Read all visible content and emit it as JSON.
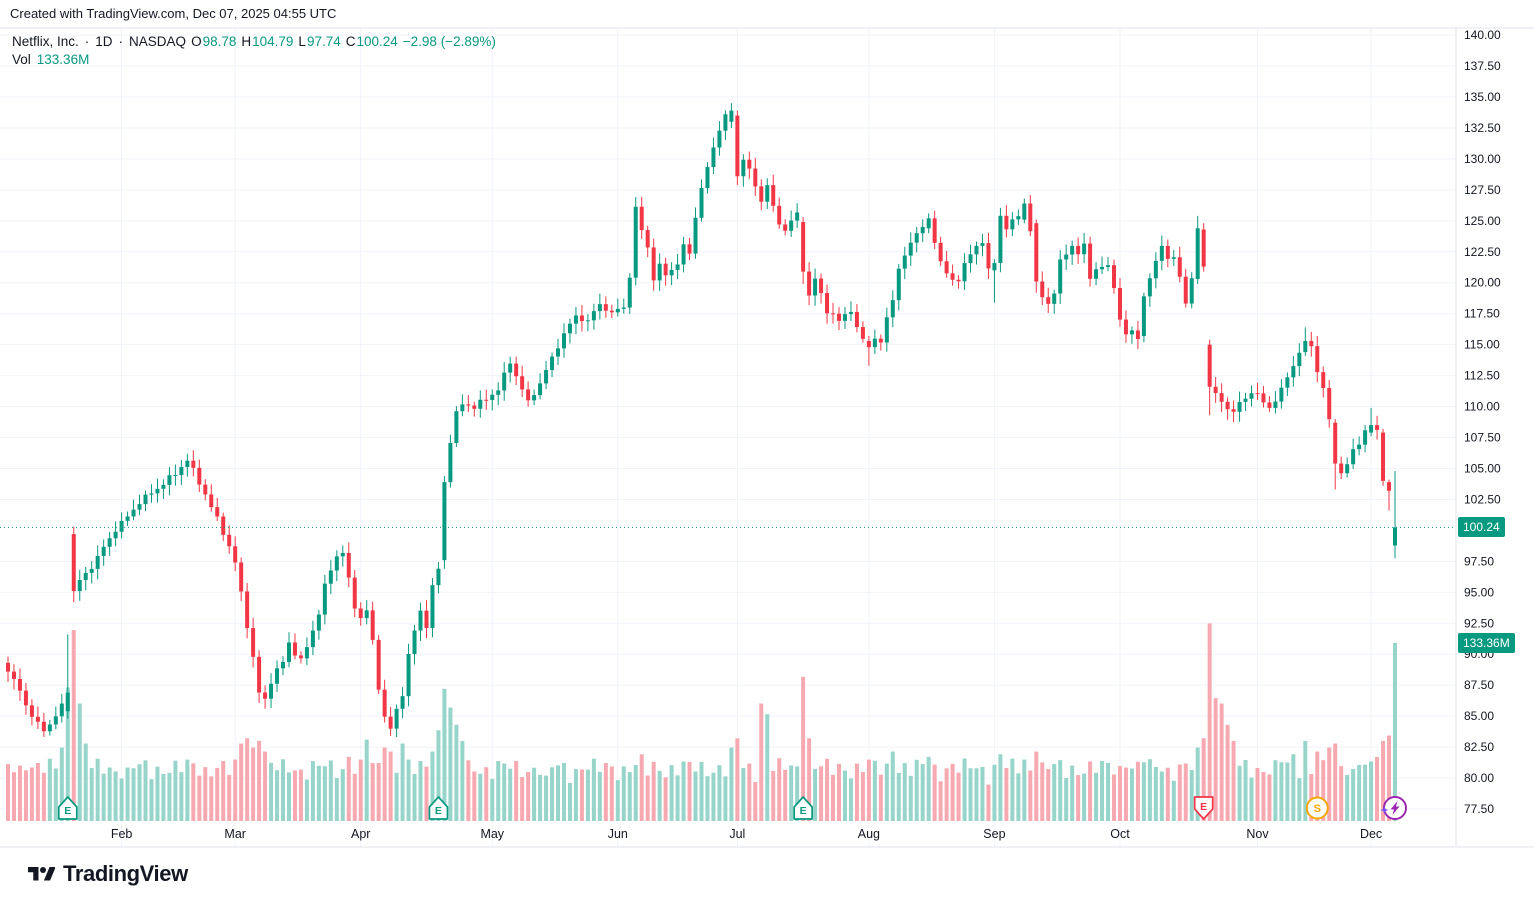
{
  "header": {
    "attribution": "Created with TradingView.com, Dec 07, 2025 04:55 UTC",
    "symbol": {
      "title": "Netflix, Inc.",
      "sep": "·",
      "interval": "1D",
      "exchange": "NASDAQ"
    },
    "ohlc": [
      {
        "label": "O",
        "value": "98.78"
      },
      {
        "label": "H",
        "value": "104.79"
      },
      {
        "label": "L",
        "value": "97.74"
      },
      {
        "label": "C",
        "value": "100.24"
      }
    ],
    "change": "−2.98 (−2.89%)",
    "vol_label": "Vol",
    "vol_value": "133.36M"
  },
  "badges": {
    "price": "100.24",
    "volume": "133.36M"
  },
  "axes": {
    "price_ticks": [
      "140.00",
      "137.50",
      "135.00",
      "132.50",
      "130.00",
      "127.50",
      "125.00",
      "122.50",
      "120.00",
      "117.50",
      "115.00",
      "112.50",
      "110.00",
      "107.50",
      "105.00",
      "102.50",
      "97.50",
      "95.00",
      "92.50",
      "90.00",
      "87.50",
      "85.00",
      "82.50",
      "80.00",
      "77.50"
    ],
    "months": [
      "Feb",
      "Mar",
      "Apr",
      "May",
      "Jun",
      "Jul",
      "Aug",
      "Sep",
      "Oct",
      "Nov",
      "Dec"
    ]
  },
  "markers": [
    {
      "type": "earnings-up",
      "label": "E",
      "index": 10
    },
    {
      "type": "earnings-up",
      "label": "E",
      "index": 72
    },
    {
      "type": "earnings-up",
      "label": "E",
      "index": 133
    },
    {
      "type": "earnings-down",
      "label": "E",
      "index": 200
    },
    {
      "type": "split",
      "label": "S",
      "index": 219
    },
    {
      "type": "flash",
      "label": "",
      "index": 232
    }
  ],
  "footer": {
    "brand": "TradingView"
  },
  "colors": {
    "up": "#089981",
    "down": "#f23645",
    "vol_up": "#97d5ca",
    "vol_down": "#f7a9b1",
    "text": "#131722",
    "grid": "#f0f3fa",
    "frame": "#e0e3eb",
    "accent": "#089981",
    "badge_text": "#ffffff",
    "split_orange": "#f7a600",
    "flash_purple": "#9c27b0",
    "sparkle": "#7c4dff"
  },
  "chart_data": {
    "type": "candlestick",
    "title": "Netflix, Inc.",
    "interval": "1D",
    "exchange": "NASDAQ",
    "legend_position": "top-left",
    "grid": true,
    "price_axis": {
      "min": 77.5,
      "max": 140,
      "step": 2.5,
      "side": "right"
    },
    "last_candle": {
      "o": 98.78,
      "h": 104.79,
      "l": 97.74,
      "c": 100.24
    },
    "last_change": "−2.98 (−2.89%)",
    "last_volume_millions": 133.36,
    "n": 233,
    "first_open": 89.3,
    "month_start_indices": [
      19,
      38,
      59,
      81,
      102,
      122,
      144,
      165,
      186,
      209,
      228
    ],
    "close_keyframes": [
      [
        0,
        88.6
      ],
      [
        2,
        87.1
      ],
      [
        4,
        84.9
      ],
      [
        6,
        83.9
      ],
      [
        8,
        84.9
      ],
      [
        9,
        85.9
      ],
      [
        10,
        86.9
      ],
      [
        11,
        95.1
      ],
      [
        12,
        95.9
      ],
      [
        14,
        97.1
      ],
      [
        16,
        98.6
      ],
      [
        18,
        100.1
      ],
      [
        20,
        101.1
      ],
      [
        22,
        102.3
      ],
      [
        25,
        103.4
      ],
      [
        28,
        104.6
      ],
      [
        30,
        105.7
      ],
      [
        32,
        103.9
      ],
      [
        34,
        101.9
      ],
      [
        36,
        99.9
      ],
      [
        38,
        97.4
      ],
      [
        39,
        94.9
      ],
      [
        40,
        92.4
      ],
      [
        42,
        86.9
      ],
      [
        43,
        86.3
      ],
      [
        44,
        87.9
      ],
      [
        46,
        89.4
      ],
      [
        47,
        90.9
      ],
      [
        49,
        89.4
      ],
      [
        51,
        91.9
      ],
      [
        52,
        93.4
      ],
      [
        53,
        95.4
      ],
      [
        54,
        96.9
      ],
      [
        55,
        97.9
      ],
      [
        56,
        98.3
      ],
      [
        57,
        95.9
      ],
      [
        58,
        93.9
      ],
      [
        59,
        92.9
      ],
      [
        60,
        93.6
      ],
      [
        61,
        90.9
      ],
      [
        62,
        87.4
      ],
      [
        63,
        84.9
      ],
      [
        64,
        84.0
      ],
      [
        65,
        85.4
      ],
      [
        66,
        86.9
      ],
      [
        67,
        89.9
      ],
      [
        68,
        91.9
      ],
      [
        69,
        93.4
      ],
      [
        70,
        92.4
      ],
      [
        71,
        95.4
      ],
      [
        72,
        96.9
      ],
      [
        73,
        103.9
      ],
      [
        74,
        107.3
      ],
      [
        75,
        109.4
      ],
      [
        76,
        110.2
      ],
      [
        78,
        110.0
      ],
      [
        80,
        110.6
      ],
      [
        82,
        111.4
      ],
      [
        84,
        113.6
      ],
      [
        86,
        111.4
      ],
      [
        87,
        110.3
      ],
      [
        89,
        111.9
      ],
      [
        91,
        113.9
      ],
      [
        93,
        115.9
      ],
      [
        95,
        117.3
      ],
      [
        97,
        116.9
      ],
      [
        99,
        118.3
      ],
      [
        101,
        117.5
      ],
      [
        103,
        118.1
      ],
      [
        104,
        120.5
      ],
      [
        105,
        126.0
      ],
      [
        106,
        124.2
      ],
      [
        107,
        123.0
      ],
      [
        108,
        120.2
      ],
      [
        109,
        121.4
      ],
      [
        110,
        120.6
      ],
      [
        111,
        121.2
      ],
      [
        112,
        121.4
      ],
      [
        113,
        123.0
      ],
      [
        114,
        122.4
      ],
      [
        115,
        125.4
      ],
      [
        116,
        127.5
      ],
      [
        117,
        129.3
      ],
      [
        118,
        131.0
      ],
      [
        119,
        132.4
      ],
      [
        120,
        133.4
      ],
      [
        121,
        133.9
      ],
      [
        122,
        128.6
      ],
      [
        123,
        130.0
      ],
      [
        124,
        129.0
      ],
      [
        125,
        127.9
      ],
      [
        126,
        126.6
      ],
      [
        127,
        127.9
      ],
      [
        128,
        126.0
      ],
      [
        129,
        124.9
      ],
      [
        130,
        124.2
      ],
      [
        131,
        125.0
      ],
      [
        132,
        125.5
      ],
      [
        133,
        120.9
      ],
      [
        134,
        118.9
      ],
      [
        135,
        120.3
      ],
      [
        137,
        117.8
      ],
      [
        139,
        116.9
      ],
      [
        141,
        117.9
      ],
      [
        142,
        116.2
      ],
      [
        144,
        114.8
      ],
      [
        145,
        115.7
      ],
      [
        146,
        114.9
      ],
      [
        147,
        117.3
      ],
      [
        148,
        118.6
      ],
      [
        149,
        121.3
      ],
      [
        150,
        121.9
      ],
      [
        151,
        123.4
      ],
      [
        152,
        124.0
      ],
      [
        153,
        124.6
      ],
      [
        154,
        125.2
      ],
      [
        156,
        121.7
      ],
      [
        157,
        120.8
      ],
      [
        158,
        120.0
      ],
      [
        159,
        120.4
      ],
      [
        160,
        121.5
      ],
      [
        161,
        122.3
      ],
      [
        162,
        122.8
      ],
      [
        163,
        123.5
      ],
      [
        164,
        121.0
      ],
      [
        165,
        121.6
      ],
      [
        166,
        125.3
      ],
      [
        167,
        124.6
      ],
      [
        168,
        124.9
      ],
      [
        169,
        125.4
      ],
      [
        170,
        126.4
      ],
      [
        171,
        124.4
      ],
      [
        172,
        120.1
      ],
      [
        173,
        118.9
      ],
      [
        174,
        118.3
      ],
      [
        175,
        119.3
      ],
      [
        176,
        121.6
      ],
      [
        177,
        122.4
      ],
      [
        178,
        123.0
      ],
      [
        179,
        122.4
      ],
      [
        180,
        122.9
      ],
      [
        181,
        120.5
      ],
      [
        182,
        121.1
      ],
      [
        183,
        121.3
      ],
      [
        184,
        121.2
      ],
      [
        185,
        119.8
      ],
      [
        186,
        117.0
      ],
      [
        187,
        115.8
      ],
      [
        188,
        116.0
      ],
      [
        189,
        115.7
      ],
      [
        190,
        118.9
      ],
      [
        192,
        121.7
      ],
      [
        193,
        123.2
      ],
      [
        194,
        121.8
      ],
      [
        195,
        122.0
      ],
      [
        196,
        120.5
      ],
      [
        197,
        118.5
      ],
      [
        198,
        120.2
      ],
      [
        199,
        124.4
      ],
      [
        200,
        121.3
      ],
      [
        201,
        111.6
      ],
      [
        202,
        110.9
      ],
      [
        203,
        110.4
      ],
      [
        204,
        109.9
      ],
      [
        205,
        109.6
      ],
      [
        206,
        110.2
      ],
      [
        207,
        110.7
      ],
      [
        208,
        111.2
      ],
      [
        209,
        111.0
      ],
      [
        210,
        110.2
      ],
      [
        211,
        110.0
      ],
      [
        212,
        110.5
      ],
      [
        213,
        111.4
      ],
      [
        214,
        112.3
      ],
      [
        215,
        113.4
      ],
      [
        216,
        114.4
      ],
      [
        217,
        115.3
      ],
      [
        218,
        114.9
      ],
      [
        219,
        112.9
      ],
      [
        220,
        111.5
      ],
      [
        221,
        108.8
      ],
      [
        222,
        105.4
      ],
      [
        223,
        104.7
      ],
      [
        224,
        105.3
      ],
      [
        225,
        106.4
      ],
      [
        226,
        107.1
      ],
      [
        227,
        108.1
      ],
      [
        228,
        108.5
      ],
      [
        229,
        108.0
      ],
      [
        230,
        104.0
      ],
      [
        231,
        103.2
      ],
      [
        232,
        100.24
      ]
    ],
    "candle_overrides": {
      "10": [
        85.4,
        91.6,
        84.8,
        86.9
      ],
      "11": [
        99.7,
        100.3,
        94.2,
        95.1
      ],
      "73": [
        97.6,
        104.4,
        96.9,
        103.9
      ],
      "121": [
        133.0,
        134.5,
        132.5,
        133.9
      ],
      "122": [
        133.5,
        133.9,
        127.9,
        128.6
      ],
      "133": [
        124.9,
        125.3,
        119.9,
        120.9
      ],
      "144": [
        115.3,
        115.7,
        113.3,
        114.8
      ],
      "154": [
        124.4,
        125.6,
        124.0,
        125.2
      ],
      "165": [
        121.0,
        121.9,
        118.4,
        121.6
      ],
      "170": [
        125.1,
        126.8,
        124.8,
        126.4
      ],
      "172": [
        124.8,
        125.1,
        119.2,
        120.1
      ],
      "190": [
        115.7,
        119.2,
        115.2,
        118.9
      ],
      "199": [
        120.3,
        125.4,
        119.9,
        124.4
      ],
      "200": [
        124.3,
        124.8,
        120.9,
        121.3
      ],
      "201": [
        115.0,
        115.4,
        109.3,
        111.6
      ],
      "217": [
        114.4,
        116.4,
        114.1,
        115.3
      ],
      "222": [
        108.7,
        109.0,
        103.3,
        105.4
      ],
      "228": [
        107.9,
        109.9,
        107.6,
        108.5
      ],
      "230": [
        107.9,
        108.2,
        103.6,
        104.0
      ],
      "231": [
        103.9,
        104.1,
        101.6,
        103.2
      ],
      "232": [
        98.78,
        104.79,
        97.74,
        100.24
      ]
    },
    "volume_overrides_millions": {
      "3": 38,
      "9": 55,
      "10": 100,
      "11": 143,
      "12": 88,
      "13": 58,
      "20": 40,
      "30": 46,
      "39": 58,
      "40": 62,
      "41": 55,
      "42": 60,
      "43": 52,
      "57": 48,
      "60": 61,
      "63": 55,
      "64": 52,
      "66": 58,
      "71": 52,
      "72": 68,
      "73": 99,
      "74": 85,
      "75": 72,
      "76": 60,
      "90": 34,
      "106": 50,
      "121": 55,
      "122": 62,
      "126": 88,
      "127": 80,
      "133": 108,
      "134": 62,
      "144": 46,
      "148": 52,
      "154": 48,
      "166": 50,
      "170": 46,
      "172": 52,
      "187": 40,
      "190": 44,
      "199": 55,
      "200": 62,
      "201": 148,
      "202": 92,
      "203": 88,
      "204": 72,
      "205": 60,
      "213": 44,
      "215": 50,
      "217": 60,
      "219": 52,
      "221": 55,
      "222": 58,
      "226": 42,
      "229": 48,
      "230": 60,
      "231": 64,
      "232": 133.36
    },
    "noise": {
      "close_amp": 0.3,
      "wick_base": 0.3,
      "wick_amp": 0.55
    }
  }
}
